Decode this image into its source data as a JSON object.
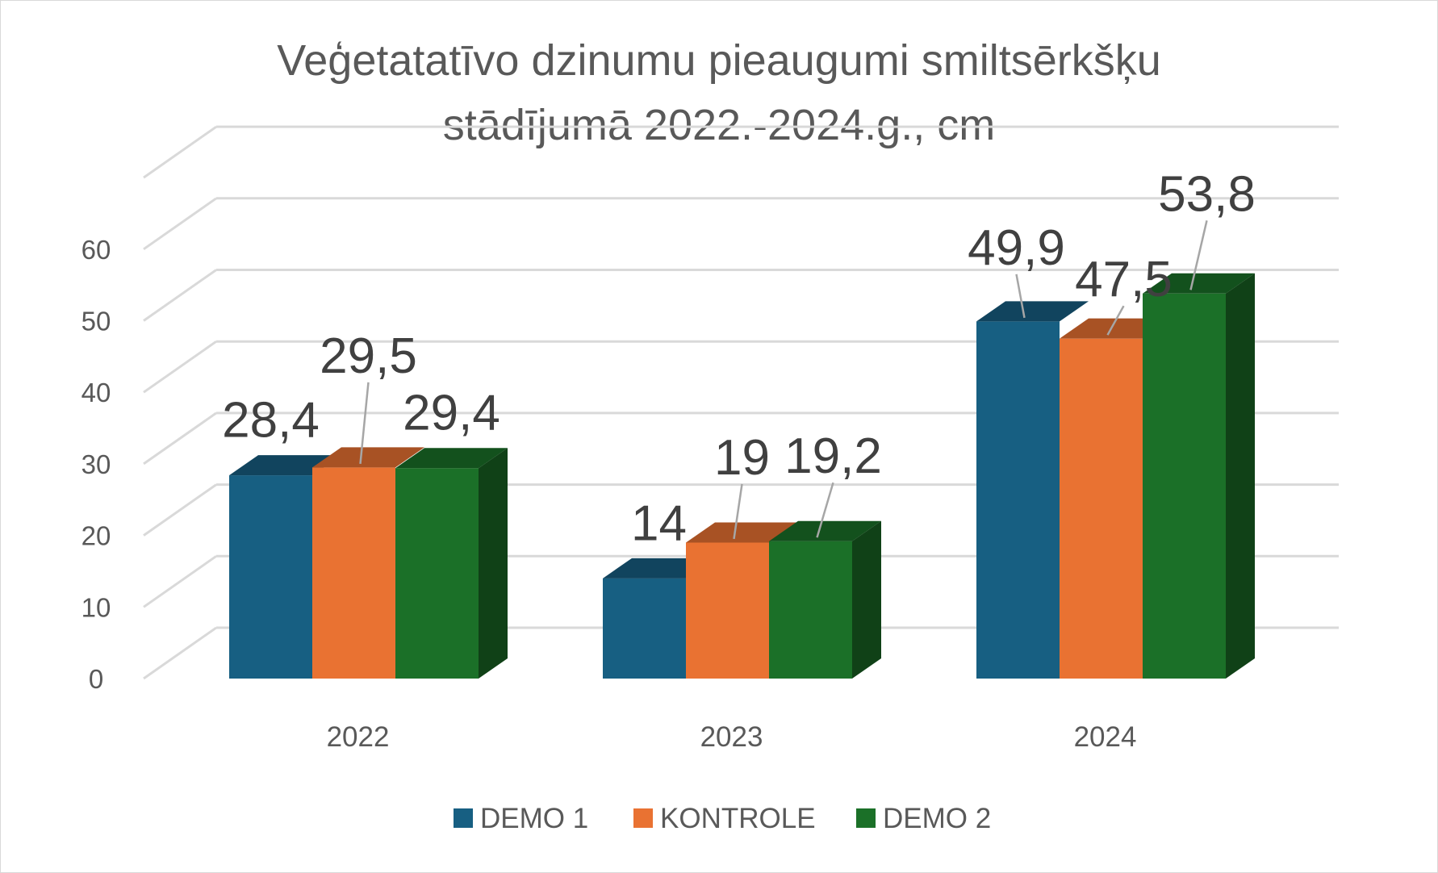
{
  "chart_data": {
    "type": "bar",
    "title_lines": [
      "Veģetatatīvo dzinumu pieaugumi smiltsērkšķu",
      "stādījumā 2022.-2024.g., cm"
    ],
    "categories": [
      "2022",
      "2023",
      "2024"
    ],
    "series": [
      {
        "name": "DEMO 1",
        "color": "#175f82",
        "values": [
          28.4,
          14,
          49.9
        ],
        "labels": [
          "28,4",
          "14",
          "49,9"
        ]
      },
      {
        "name": "KONTROLE",
        "color": "#e97232",
        "values": [
          29.5,
          19,
          47.5
        ],
        "labels": [
          "29,5",
          "19",
          "47,5"
        ]
      },
      {
        "name": "DEMO 2",
        "color": "#1b7028",
        "values": [
          29.4,
          19.2,
          53.8
        ],
        "labels": [
          "29,4",
          "19,2",
          "53,8"
        ]
      }
    ],
    "y_ticks": [
      "0",
      "10",
      "20",
      "30",
      "40",
      "50",
      "60"
    ],
    "ylim": [
      0,
      60
    ],
    "grid": true,
    "legend_position": "bottom",
    "three_d": true
  }
}
